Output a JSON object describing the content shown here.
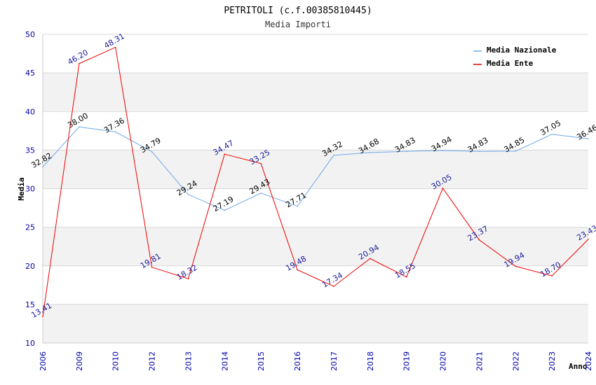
{
  "chart_data": {
    "type": "line",
    "title": "PETRITOLI (c.f.00385810445)",
    "subtitle": "Media Importi",
    "xlabel": "Anno",
    "ylabel": "Media",
    "ylim": [
      10,
      50
    ],
    "yticks": [
      "10",
      "15",
      "20",
      "25",
      "30",
      "35",
      "40",
      "45",
      "50"
    ],
    "categories": [
      "2006",
      "2009",
      "2010",
      "2012",
      "2013",
      "2014",
      "2015",
      "2016",
      "2017",
      "2018",
      "2019",
      "2020",
      "2021",
      "2022",
      "2023",
      "2024"
    ],
    "legend_position": "top-right",
    "series": [
      {
        "name": "Media Nazionale",
        "color": "#6fa8e8",
        "label_color": "#000000",
        "values": [
          32.82,
          38.0,
          37.36,
          34.79,
          29.24,
          27.19,
          29.43,
          27.71,
          34.32,
          34.68,
          34.83,
          34.94,
          34.83,
          34.85,
          37.05,
          36.46
        ],
        "labels": [
          "32.82",
          "38.00",
          "37.36",
          "34.79",
          "29.24",
          "27.19",
          "29.43",
          "27.71",
          "34.32",
          "34.68",
          "34.83",
          "34.94",
          "34.83",
          "34.85",
          "37.05",
          "36.46"
        ]
      },
      {
        "name": "Media Ente",
        "color": "#ee0000",
        "label_color": "#1a1a99",
        "values": [
          13.41,
          46.2,
          48.31,
          19.81,
          18.32,
          34.47,
          33.25,
          19.48,
          17.34,
          20.94,
          18.55,
          30.05,
          23.37,
          19.94,
          18.7,
          23.43
        ],
        "labels": [
          "13.41",
          "46.20",
          "48.31",
          "19.81",
          "18.32",
          "34.47",
          "33.25",
          "19.48",
          "17.34",
          "20.94",
          "18.55",
          "30.05",
          "23.37",
          "19.94",
          "18.70",
          "23.43"
        ]
      }
    ],
    "colors": {
      "tick": "#0000aa",
      "band": "#f2f2f2",
      "grid": "#d8d8d8",
      "frame": "#cccccc"
    }
  }
}
